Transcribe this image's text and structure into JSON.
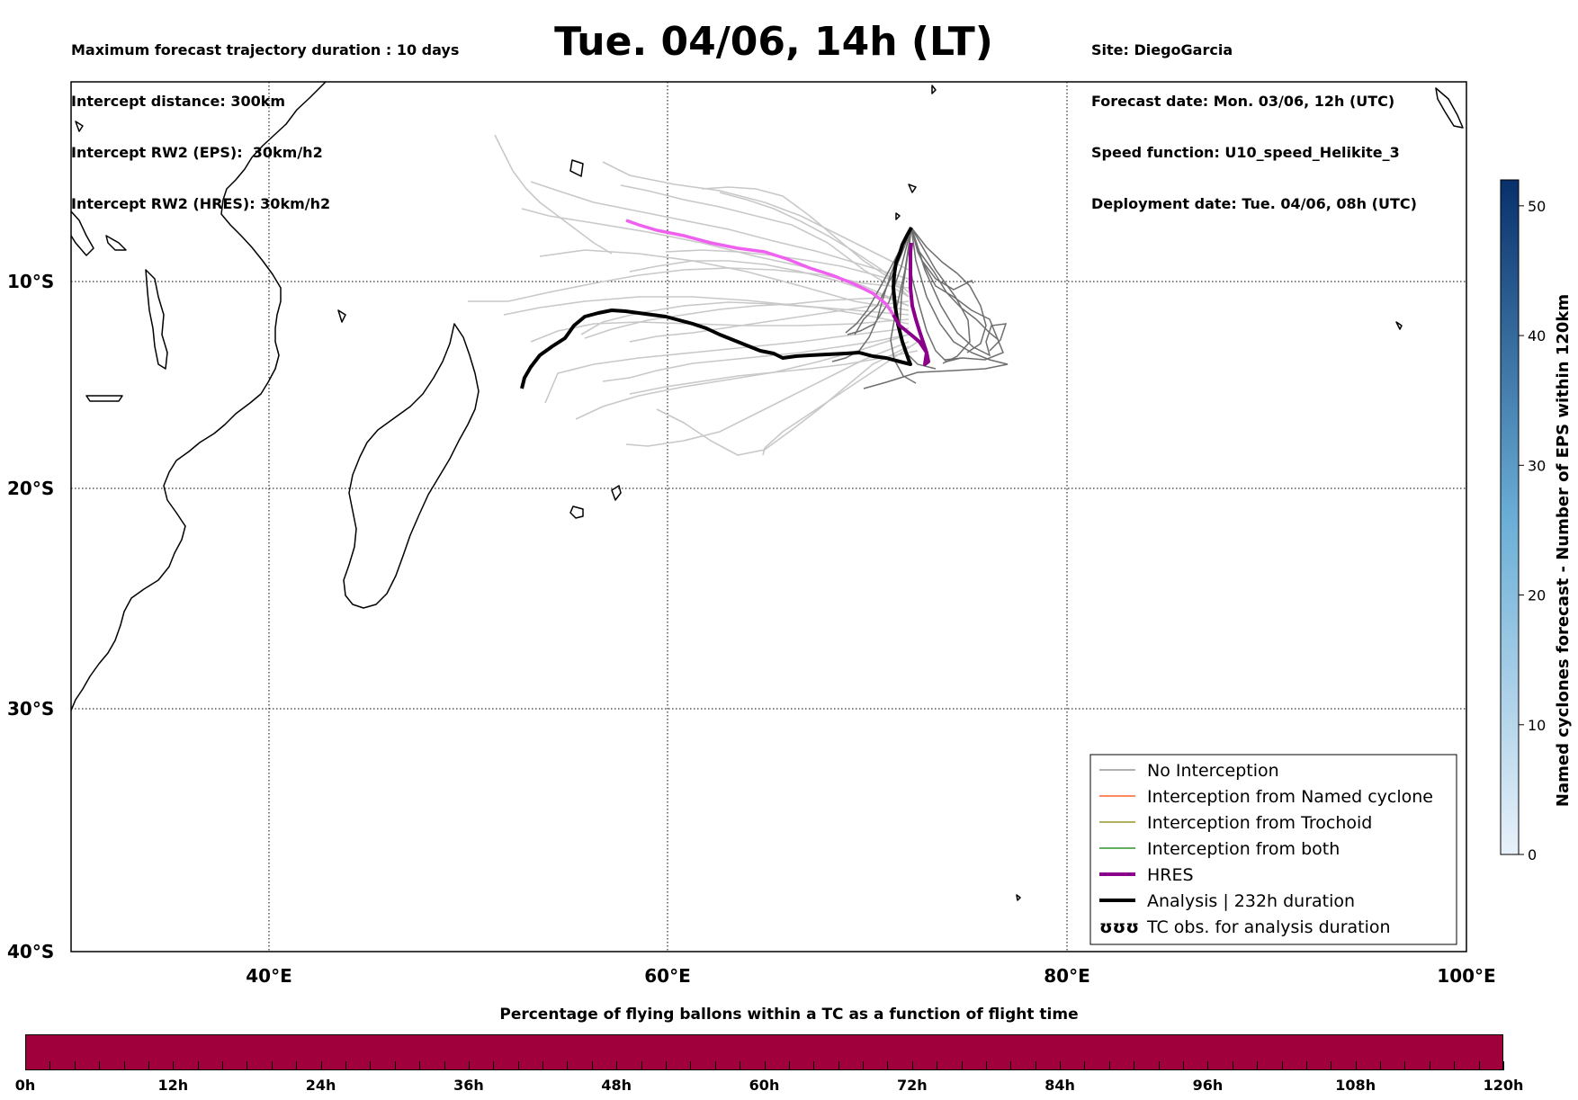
{
  "header": {
    "left_lines": [
      "Maximum forecast trajectory duration : 10 days",
      "Intercept distance: 300km",
      "Intercept RW2 (EPS):  30km/h2",
      "Intercept RW2 (HRES): 30km/h2"
    ],
    "title": "Tue. 04/06, 14h (LT)",
    "right_lines": [
      "Site: DiegoGarcia",
      "Forecast date: Mon. 03/06, 12h (UTC)",
      "Speed function: U10_speed_Helikite_3",
      "Deployment date: Tue. 04/06, 08h (UTC)"
    ]
  },
  "map": {
    "lon_range": [
      30,
      100
    ],
    "lat_range": [
      -40,
      0
    ],
    "grid": "dotted",
    "lat_labels": [
      {
        "value": -10,
        "text": "10°S"
      },
      {
        "value": -20,
        "text": "20°S"
      },
      {
        "value": -30,
        "text": "30°S"
      },
      {
        "value": -40,
        "text": "40°S"
      }
    ],
    "lon_labels": [
      {
        "value": 40,
        "text": "40°E"
      },
      {
        "value": 60,
        "text": "60°E"
      },
      {
        "value": 80,
        "text": "80°E"
      },
      {
        "value": 100,
        "text": "100°E"
      }
    ],
    "colors": {
      "eps_light": "#c8c8c8",
      "eps_dark": "#6e6e6e",
      "hres_start": "#f060f0",
      "hres_end": "#8b008b",
      "analysis": "#000000",
      "named_cyclone": "#ff4500",
      "trochoid": "#808000",
      "both": "#008000"
    }
  },
  "legend": {
    "placement": "bottom-right",
    "items": [
      {
        "label": "No Interception",
        "color": "#808080",
        "style": "thin"
      },
      {
        "label": "Interception from Named cyclone",
        "color": "#ff4500",
        "style": "thin"
      },
      {
        "label": "Interception from Trochoid",
        "color": "#808000",
        "style": "thin"
      },
      {
        "label": "Interception from both",
        "color": "#008000",
        "style": "thin"
      },
      {
        "label": "HRES",
        "color": "#8b008b",
        "style": "thick"
      },
      {
        "label": "Analysis | 232h duration",
        "color": "#000000",
        "style": "thick"
      },
      {
        "label": "TC obs. for analysis duration",
        "color": "#000000",
        "style": "symbol",
        "symbol_text": "ʊʊʊ"
      }
    ]
  },
  "colorbar": {
    "title": "Named cyclones forecast - Number of EPS within 120km",
    "ticks": [
      "0",
      "10",
      "20",
      "30",
      "40",
      "50"
    ],
    "range": [
      0,
      52
    ],
    "color_low": "#e8f1fa",
    "color_high": "#08306b"
  },
  "time_bar": {
    "title": "Percentage of flying ballons within a TC as a function of flight time",
    "color": "#a0003c",
    "ticks": [
      "0h",
      "12h",
      "24h",
      "36h",
      "48h",
      "60h",
      "72h",
      "84h",
      "96h",
      "108h",
      "120h"
    ]
  }
}
